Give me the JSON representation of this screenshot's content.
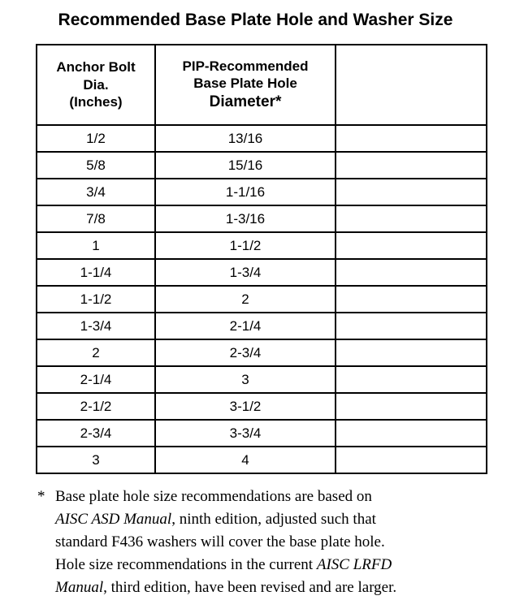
{
  "page": {
    "title": "Recommended Base Plate Hole and Washer Size"
  },
  "table": {
    "header": {
      "col1_lines": [
        "Anchor Bolt",
        "Dia.",
        "(Inches)"
      ],
      "col2_lines": [
        "PIP-Recommended",
        "Base Plate Hole",
        "Diameter*"
      ],
      "col3": ""
    },
    "rows": [
      {
        "bolt": "1/2",
        "hole": "13/16",
        "note": ""
      },
      {
        "bolt": "5/8",
        "hole": "15/16",
        "note": ""
      },
      {
        "bolt": "3/4",
        "hole": "1-1/16",
        "note": ""
      },
      {
        "bolt": "7/8",
        "hole": "1-3/16",
        "note": ""
      },
      {
        "bolt": "1",
        "hole": "1-1/2",
        "note": ""
      },
      {
        "bolt": "1-1/4",
        "hole": "1-3/4",
        "note": ""
      },
      {
        "bolt": "1-1/2",
        "hole": "2",
        "note": ""
      },
      {
        "bolt": "1-3/4",
        "hole": "2-1/4",
        "note": ""
      },
      {
        "bolt": "2",
        "hole": "2-3/4",
        "note": ""
      },
      {
        "bolt": "2-1/4",
        "hole": "3",
        "note": ""
      },
      {
        "bolt": "2-1/2",
        "hole": "3-1/2",
        "note": ""
      },
      {
        "bolt": "2-3/4",
        "hole": "3-3/4",
        "note": ""
      },
      {
        "bolt": "3",
        "hole": "4",
        "note": ""
      }
    ]
  },
  "footnote": {
    "marker": "*",
    "lines": [
      {
        "segments": [
          {
            "text": "Base plate hole size recommendations are based on"
          }
        ]
      },
      {
        "segments": [
          {
            "text": "AISC ASD Manual"
          },
          {
            "text": ", ninth edition, adjusted such that"
          }
        ]
      },
      {
        "segments": [
          {
            "text": "standard F436 washers will cover the base plate hole."
          }
        ]
      },
      {
        "segments": [
          {
            "text": "Hole size recommendations in the current "
          },
          {
            "text": "AISC LRFD"
          }
        ]
      },
      {
        "segments": [
          {
            "text": "Manual"
          },
          {
            "text": ", third edition, have been revised and are larger."
          }
        ]
      }
    ]
  },
  "colors": {
    "background": "#ffffff",
    "text": "#000000",
    "border": "#000000"
  }
}
